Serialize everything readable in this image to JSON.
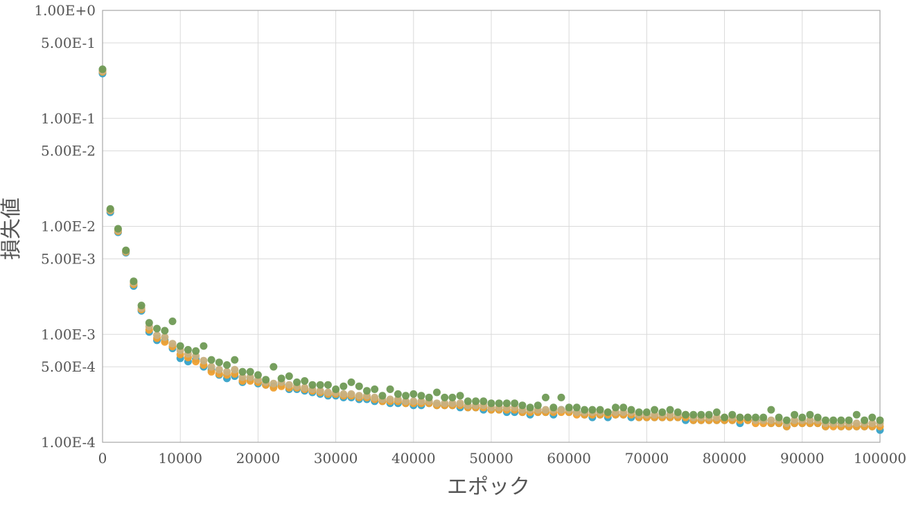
{
  "chart_data": {
    "type": "scatter",
    "xlabel": "エポック",
    "ylabel": "損失値",
    "x_scale": "linear",
    "y_scale": "log",
    "xlim": [
      0,
      100000
    ],
    "ylim": [
      0.0001,
      1
    ],
    "x_tick_labels": [
      "0",
      "10000",
      "20000",
      "30000",
      "40000",
      "50000",
      "60000",
      "70000",
      "80000",
      "90000",
      "100000"
    ],
    "y_ticks": [
      {
        "value": 1,
        "label": "1.00E+0"
      },
      {
        "value": 0.5,
        "label": "5.00E-1"
      },
      {
        "value": 0.1,
        "label": "1.00E-1"
      },
      {
        "value": 0.05,
        "label": "5.00E-2"
      },
      {
        "value": 0.01,
        "label": "1.00E-2"
      },
      {
        "value": 0.005,
        "label": "5.00E-3"
      },
      {
        "value": 0.001,
        "label": "1.00E-3"
      },
      {
        "value": 0.0005,
        "label": "5.00E-4"
      },
      {
        "value": 0.0001,
        "label": "1.00E-4"
      }
    ],
    "grid": true,
    "legend": "none",
    "x": [
      0,
      1000,
      2000,
      3000,
      4000,
      5000,
      6000,
      7000,
      8000,
      9000,
      10000,
      11000,
      12000,
      13000,
      14000,
      15000,
      16000,
      17000,
      18000,
      19000,
      20000,
      21000,
      22000,
      23000,
      24000,
      25000,
      26000,
      27000,
      28000,
      29000,
      30000,
      31000,
      32000,
      33000,
      34000,
      35000,
      36000,
      37000,
      38000,
      39000,
      40000,
      41000,
      42000,
      43000,
      44000,
      45000,
      46000,
      47000,
      48000,
      49000,
      50000,
      51000,
      52000,
      53000,
      54000,
      55000,
      56000,
      57000,
      58000,
      59000,
      60000,
      61000,
      62000,
      63000,
      64000,
      65000,
      66000,
      67000,
      68000,
      69000,
      70000,
      71000,
      72000,
      73000,
      74000,
      75000,
      76000,
      77000,
      78000,
      79000,
      80000,
      81000,
      82000,
      83000,
      84000,
      85000,
      86000,
      87000,
      88000,
      89000,
      90000,
      91000,
      92000,
      93000,
      94000,
      95000,
      96000,
      97000,
      98000,
      99000,
      100000
    ],
    "series": [
      {
        "color": "#36a2c8",
        "values": [
          0.26,
          0.0135,
          0.0088,
          0.0057,
          0.0028,
          0.00165,
          0.00105,
          0.00088,
          0.00088,
          0.00074,
          0.0006,
          0.00056,
          0.00059,
          0.0005,
          0.00047,
          0.00042,
          0.00039,
          0.00041,
          0.00036,
          0.00038,
          0.00035,
          0.00034,
          0.00033,
          0.00034,
          0.00031,
          0.00031,
          0.0003,
          0.00029,
          0.00028,
          0.00027,
          0.00027,
          0.00026,
          0.00026,
          0.00025,
          0.00025,
          0.00024,
          0.00024,
          0.00023,
          0.00023,
          0.00023,
          0.00022,
          0.00022,
          0.00023,
          0.00022,
          0.00022,
          0.00022,
          0.00021,
          0.00021,
          0.00021,
          0.0002,
          0.0002,
          0.0002,
          0.00019,
          0.00019,
          0.00019,
          0.00018,
          0.00019,
          0.00019,
          0.00018,
          0.0002,
          0.00019,
          0.00019,
          0.00018,
          0.00017,
          0.00018,
          0.00017,
          0.00018,
          0.00018,
          0.00017,
          0.00017,
          0.00017,
          0.00017,
          0.00017,
          0.00017,
          0.00017,
          0.00016,
          0.00016,
          0.00016,
          0.00016,
          0.00016,
          0.00016,
          0.00016,
          0.00015,
          0.00016,
          0.00016,
          0.00016,
          0.00015,
          0.00015,
          0.00014,
          0.00015,
          0.00015,
          0.00015,
          0.00015,
          0.00014,
          0.00015,
          0.00014,
          0.00014,
          0.00014,
          0.00014,
          0.00014,
          0.00013
        ]
      },
      {
        "color": "#f0a030",
        "values": [
          0.27,
          0.014,
          0.009,
          0.0058,
          0.0029,
          0.0017,
          0.0011,
          0.00092,
          0.00085,
          0.00077,
          0.00065,
          0.00061,
          0.00056,
          0.00052,
          0.00045,
          0.00043,
          0.00042,
          0.00043,
          0.00037,
          0.00037,
          0.00036,
          0.00034,
          0.00032,
          0.00033,
          0.00032,
          0.00032,
          0.00031,
          0.0003,
          0.00029,
          0.00028,
          0.00028,
          0.00027,
          0.00027,
          0.00026,
          0.00026,
          0.00025,
          0.00024,
          0.00024,
          0.00024,
          0.00023,
          0.00023,
          0.00023,
          0.00023,
          0.00022,
          0.00022,
          0.00022,
          0.00022,
          0.00021,
          0.00021,
          0.00021,
          0.0002,
          0.0002,
          0.0002,
          0.0002,
          0.00019,
          0.00019,
          0.00019,
          0.00019,
          0.00019,
          0.00019,
          0.00019,
          0.00018,
          0.00018,
          0.00018,
          0.00018,
          0.00018,
          0.00018,
          0.00018,
          0.00018,
          0.00017,
          0.00017,
          0.00017,
          0.00017,
          0.00017,
          0.00017,
          0.00017,
          0.00016,
          0.00016,
          0.00016,
          0.00016,
          0.00016,
          0.00016,
          0.00016,
          0.00016,
          0.00015,
          0.00015,
          0.00015,
          0.00015,
          0.00014,
          0.00015,
          0.00015,
          0.00015,
          0.00015,
          0.00014,
          0.00014,
          0.00014,
          0.00014,
          0.00014,
          0.00014,
          0.00014,
          0.00014
        ]
      },
      {
        "color": "#c8b080",
        "values": [
          0.275,
          0.0142,
          0.0092,
          0.0059,
          0.003,
          0.00175,
          0.00118,
          0.00098,
          0.00094,
          0.00082,
          0.00071,
          0.00066,
          0.00063,
          0.00057,
          0.0005,
          0.00047,
          0.00045,
          0.00047,
          0.0004,
          0.0004,
          0.00038,
          0.00036,
          0.00035,
          0.00036,
          0.00034,
          0.00033,
          0.00032,
          0.00031,
          0.0003,
          0.00029,
          0.00029,
          0.00028,
          0.00028,
          0.00027,
          0.00027,
          0.00026,
          0.00025,
          0.00025,
          0.00025,
          0.00024,
          0.00024,
          0.00024,
          0.00024,
          0.00023,
          0.00023,
          0.00023,
          0.00023,
          0.00022,
          0.00022,
          0.00022,
          0.00021,
          0.00021,
          0.00021,
          0.00021,
          0.0002,
          0.0002,
          0.0002,
          0.0002,
          0.0002,
          0.0002,
          0.0002,
          0.00019,
          0.00019,
          0.00019,
          0.00019,
          0.00019,
          0.00019,
          0.00019,
          0.00019,
          0.00018,
          0.00018,
          0.00018,
          0.00018,
          0.00018,
          0.00018,
          0.00018,
          0.00017,
          0.00017,
          0.00017,
          0.00017,
          0.00017,
          0.00017,
          0.00017,
          0.00017,
          0.00016,
          0.00016,
          0.00016,
          0.00016,
          0.00015,
          0.00016,
          0.00016,
          0.00016,
          0.00016,
          0.00015,
          0.00015,
          0.00015,
          0.00015,
          0.00015,
          0.00015,
          0.00015,
          0.00015
        ]
      },
      {
        "color": "#6f9a55",
        "values": [
          0.285,
          0.0145,
          0.0095,
          0.006,
          0.0031,
          0.00185,
          0.00128,
          0.00113,
          0.00108,
          0.00132,
          0.00078,
          0.00072,
          0.0007,
          0.00078,
          0.00058,
          0.00055,
          0.00052,
          0.00058,
          0.00045,
          0.00045,
          0.00042,
          0.00038,
          0.0005,
          0.00039,
          0.00041,
          0.00036,
          0.00037,
          0.00034,
          0.00034,
          0.00034,
          0.00031,
          0.00033,
          0.00036,
          0.00033,
          0.0003,
          0.00031,
          0.00027,
          0.00031,
          0.00028,
          0.00027,
          0.00028,
          0.00027,
          0.00026,
          0.00029,
          0.00026,
          0.00026,
          0.00027,
          0.00024,
          0.00024,
          0.00024,
          0.00023,
          0.00023,
          0.00023,
          0.00023,
          0.00022,
          0.00021,
          0.00022,
          0.00026,
          0.00021,
          0.00026,
          0.00021,
          0.00021,
          0.0002,
          0.0002,
          0.0002,
          0.00019,
          0.00021,
          0.00021,
          0.0002,
          0.00019,
          0.00019,
          0.0002,
          0.00019,
          0.0002,
          0.00019,
          0.00018,
          0.00018,
          0.00018,
          0.00018,
          0.00019,
          0.00017,
          0.00018,
          0.00017,
          0.00017,
          0.00017,
          0.00017,
          0.0002,
          0.00017,
          0.00016,
          0.00018,
          0.00017,
          0.00018,
          0.00017,
          0.00016,
          0.00016,
          0.00016,
          0.00016,
          0.00018,
          0.00016,
          0.00017,
          0.00016
        ]
      }
    ]
  }
}
